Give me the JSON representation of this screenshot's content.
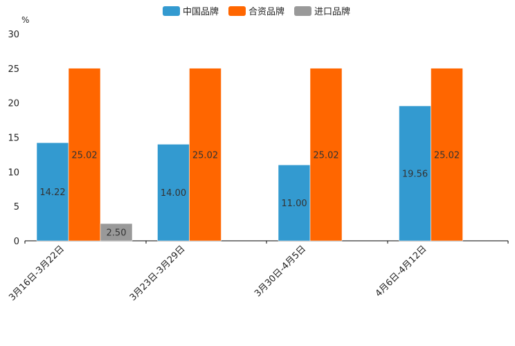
{
  "chart_data": {
    "type": "bar",
    "title": "",
    "ylabel": "%",
    "xlabel": "",
    "ylim": [
      0,
      30
    ],
    "yticks": [
      0,
      5,
      10,
      15,
      20,
      25,
      30
    ],
    "legend_position": "top-center",
    "categories": [
      "3月16日-3月22日",
      "3月23日-3月29日",
      "3月30日-4月5日",
      "4月6日-4月12日"
    ],
    "series": [
      {
        "name": "中国品牌",
        "color": "#339ad0",
        "values": [
          14.22,
          14.0,
          11.0,
          19.56
        ],
        "labels": [
          "14.22",
          "14.00",
          "11.00",
          "19.56"
        ]
      },
      {
        "name": "合资品牌",
        "color": "#ff6600",
        "values": [
          25.02,
          25.02,
          25.02,
          25.02
        ],
        "labels": [
          "25.02",
          "25.02",
          "25.02",
          "25.02"
        ]
      },
      {
        "name": "进口品牌",
        "color": "#999999",
        "values": [
          2.5,
          null,
          null,
          null
        ],
        "labels": [
          "2.50",
          null,
          null,
          null
        ]
      }
    ]
  }
}
